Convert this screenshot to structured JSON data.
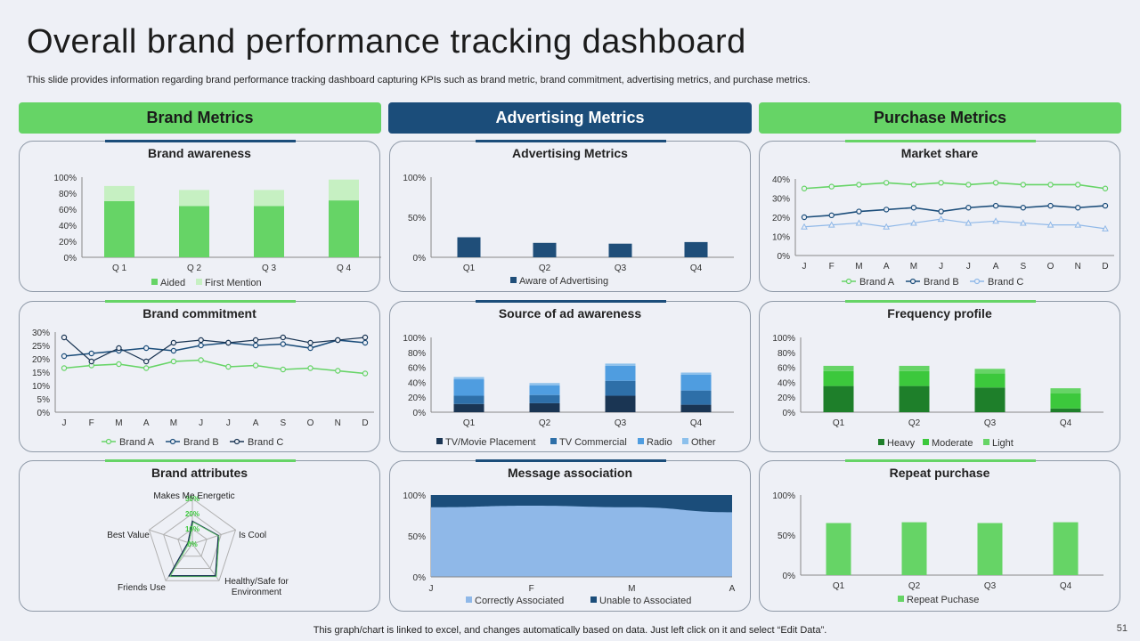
{
  "page": {
    "title": "Overall brand performance tracking dashboard",
    "subtitle": "This slide provides information regarding brand performance tracking dashboard capturing KPIs such as brand metric, brand commitment, advertising metrics, and purchase metrics.",
    "footer": "This graph/chart is linked to excel,  and changes automatically based on data. Just left click on it and select “Edit Data”.",
    "page_number": "51"
  },
  "sections": [
    {
      "label": "Brand Metrics"
    },
    {
      "label": "Advertising Metrics"
    },
    {
      "label": "Purchase Metrics"
    }
  ],
  "colors": {
    "green": "#66d466",
    "light_green": "#c6f0c2",
    "dark_green": "#1e7f2a",
    "mid_green": "#3cc83c",
    "navy": "#1b4d7a",
    "dark_navy": "#1a3553",
    "mid_blue": "#2e6fa8",
    "sky": "#4f9de0",
    "light_sky": "#8cc0ec",
    "pale_blue": "#8fb8e8",
    "bar_navy": "#1f4e79"
  },
  "chart_data": [
    {
      "id": "brand_awareness",
      "type": "bar",
      "title": "Brand awareness",
      "categories": [
        "Q 1",
        "Q 2",
        "Q 3",
        "Q 4"
      ],
      "series": [
        {
          "name": "Aided",
          "values": [
            70,
            64,
            64,
            71
          ]
        },
        {
          "name": "First Mention",
          "values": [
            19,
            20,
            20,
            26
          ]
        }
      ],
      "stacked": true,
      "yticks": [
        "0%",
        "20%",
        "40%",
        "60%",
        "80%",
        "100%"
      ],
      "ylim": [
        0,
        100
      ]
    },
    {
      "id": "advertising_metrics",
      "type": "bar",
      "title": "Advertising Metrics",
      "categories": [
        "Q1",
        "Q2",
        "Q3",
        "Q4"
      ],
      "series": [
        {
          "name": "Aware of  Advertising",
          "values": [
            25,
            18,
            17,
            19
          ]
        }
      ],
      "yticks": [
        "0%",
        "50%",
        "100%"
      ],
      "ylim": [
        0,
        100
      ]
    },
    {
      "id": "market_share",
      "type": "line",
      "title": "Market share",
      "categories": [
        "J",
        "F",
        "M",
        "A",
        "M",
        "J",
        "J",
        "A",
        "S",
        "O",
        "N",
        "D"
      ],
      "series": [
        {
          "name": "Brand A",
          "values": [
            35,
            36,
            37,
            38,
            37,
            38,
            37,
            38,
            37,
            37,
            37,
            35
          ]
        },
        {
          "name": "Brand B",
          "values": [
            20,
            21,
            23,
            24,
            25,
            23,
            25,
            26,
            25,
            26,
            25,
            26
          ]
        },
        {
          "name": "Brand C",
          "values": [
            15,
            16,
            17,
            15,
            17,
            19,
            17,
            18,
            17,
            16,
            16,
            14
          ]
        }
      ],
      "yticks": [
        "0%",
        "10%",
        "20%",
        "30%",
        "40%"
      ],
      "ylim": [
        0,
        40
      ]
    },
    {
      "id": "brand_commitment",
      "type": "line",
      "title": "Brand commitment",
      "categories": [
        "J",
        "F",
        "M",
        "A",
        "M",
        "J",
        "J",
        "A",
        "S",
        "O",
        "N",
        "D"
      ],
      "series": [
        {
          "name": "Brand A",
          "values": [
            16.5,
            17.5,
            18,
            16.5,
            19,
            19.5,
            17,
            17.5,
            16,
            16.5,
            15.5,
            14.5
          ]
        },
        {
          "name": "Brand B",
          "values": [
            21,
            22,
            23,
            24,
            23,
            25,
            26,
            25,
            25.5,
            24,
            27,
            26
          ]
        },
        {
          "name": "Brand C",
          "values": [
            28,
            19,
            24,
            19,
            26,
            27,
            26,
            27,
            28,
            26,
            27,
            28
          ]
        }
      ],
      "yticks": [
        "0%",
        "5%",
        "10%",
        "15%",
        "20%",
        "25%",
        "30%"
      ],
      "ylim": [
        0,
        30
      ]
    },
    {
      "id": "source_of_ad_awareness",
      "type": "bar",
      "title": "Source of ad awareness",
      "categories": [
        "Q1",
        "Q2",
        "Q3",
        "Q4"
      ],
      "series": [
        {
          "name": "TV/Movie Placement",
          "values": [
            11,
            12,
            22,
            10
          ]
        },
        {
          "name": "TV Commercial",
          "values": [
            11,
            11,
            20,
            19
          ]
        },
        {
          "name": "Radio",
          "values": [
            22,
            13,
            20,
            21
          ]
        },
        {
          "name": "Other",
          "values": [
            3,
            3,
            3,
            3
          ]
        }
      ],
      "stacked": true,
      "yticks": [
        "0%",
        "20%",
        "40%",
        "60%",
        "80%",
        "100%"
      ],
      "ylim": [
        0,
        100
      ]
    },
    {
      "id": "frequency_profile",
      "type": "bar",
      "title": "Frequency profile",
      "categories": [
        "Q1",
        "Q2",
        "Q3",
        "Q4"
      ],
      "series": [
        {
          "name": "Heavy",
          "values": [
            35,
            35,
            33,
            5
          ]
        },
        {
          "name": "Moderate",
          "values": [
            20,
            20,
            19,
            20
          ]
        },
        {
          "name": "Light",
          "values": [
            7,
            7,
            6,
            7
          ]
        }
      ],
      "stacked": true,
      "yticks": [
        "0%",
        "20%",
        "40%",
        "60%",
        "80%",
        "100%"
      ],
      "ylim": [
        0,
        100
      ]
    },
    {
      "id": "brand_attributes",
      "type": "radar",
      "title": "Brand attributes",
      "axes": [
        "Makes Me Energetic",
        "Is Cool",
        "Healthy/Safe for Environment",
        "Friends Use",
        "Best Value"
      ],
      "values": [
        15,
        18,
        26,
        26,
        3
      ],
      "rticks": [
        "0%",
        "10%",
        "20%",
        "30%"
      ],
      "rlim": [
        0,
        30
      ]
    },
    {
      "id": "message_association",
      "type": "area",
      "title": "Message association",
      "categories": [
        "J",
        "F",
        "M",
        "A"
      ],
      "series": [
        {
          "name": "Correctly Associated",
          "values": [
            85,
            87,
            85,
            79
          ]
        },
        {
          "name": "Unable to Associated",
          "values": [
            15,
            13,
            15,
            21
          ]
        }
      ],
      "stacked": true,
      "yticks": [
        "0%",
        "50%",
        "100%"
      ],
      "ylim": [
        0,
        100
      ]
    },
    {
      "id": "repeat_purchase",
      "type": "bar",
      "title": "Repeat purchase",
      "categories": [
        "Q1",
        "Q2",
        "Q3",
        "Q4"
      ],
      "series": [
        {
          "name": "Repeat Puchase",
          "values": [
            65,
            66,
            65,
            66
          ]
        }
      ],
      "yticks": [
        "0%",
        "50%",
        "100%"
      ],
      "ylim": [
        0,
        100
      ]
    }
  ]
}
